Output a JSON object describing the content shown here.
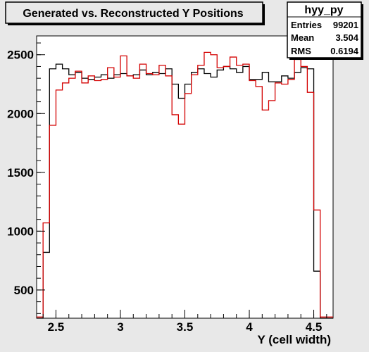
{
  "title": "Generated vs. Reconstructed Y Positions",
  "stats": {
    "name": "hyy_py",
    "rows": [
      {
        "label": "Entries",
        "value": "99201"
      },
      {
        "label": "Mean",
        "value": "3.504"
      },
      {
        "label": "RMS",
        "value": "0.6194"
      }
    ]
  },
  "chart_data": {
    "type": "line",
    "title": "Generated vs. Reconstructed Y Positions",
    "xlabel": "Y (cell width)",
    "ylabel": "",
    "xlim": [
      2.35,
      4.65
    ],
    "ylim": [
      260,
      2660
    ],
    "x_ticks": [
      {
        "value": 2.5,
        "label": "2.5"
      },
      {
        "value": 3.0,
        "label": "3"
      },
      {
        "value": 3.5,
        "label": "3.5"
      },
      {
        "value": 4.0,
        "label": "4"
      },
      {
        "value": 4.5,
        "label": "4.5"
      }
    ],
    "y_ticks": [
      {
        "value": 500,
        "label": "500"
      },
      {
        "value": 1000,
        "label": "1000"
      },
      {
        "value": 1500,
        "label": "1500"
      },
      {
        "value": 2000,
        "label": "2000"
      },
      {
        "value": 2500,
        "label": "2500"
      }
    ],
    "bin_edges": [
      2.35,
      2.4,
      2.45,
      2.5,
      2.55,
      2.6,
      2.65,
      2.7,
      2.75,
      2.8,
      2.85,
      2.9,
      2.95,
      3.0,
      3.05,
      3.1,
      3.15,
      3.2,
      3.25,
      3.3,
      3.35,
      3.4,
      3.45,
      3.5,
      3.55,
      3.6,
      3.65,
      3.7,
      3.75,
      3.8,
      3.85,
      3.9,
      3.95,
      4.0,
      4.05,
      4.1,
      4.15,
      4.2,
      4.25,
      4.3,
      4.35,
      4.4,
      4.45,
      4.5,
      4.55,
      4.6,
      4.65
    ],
    "series": [
      {
        "color": "#000000",
        "values": [
          260,
          820,
          2380,
          2420,
          2380,
          2330,
          2350,
          2300,
          2290,
          2310,
          2330,
          2300,
          2330,
          2340,
          2320,
          2330,
          2370,
          2330,
          2350,
          2340,
          2380,
          2250,
          2130,
          2250,
          2350,
          2380,
          2340,
          2310,
          2370,
          2400,
          2380,
          2350,
          2400,
          2290,
          2290,
          2350,
          2270,
          2270,
          2320,
          2300,
          2350,
          2390,
          2380,
          660,
          260,
          260
        ]
      },
      {
        "color": "#d40000",
        "values": [
          270,
          1070,
          1900,
          2200,
          2260,
          2300,
          2360,
          2260,
          2320,
          2280,
          2290,
          2390,
          2310,
          2490,
          2320,
          2300,
          2420,
          2340,
          2330,
          2410,
          2320,
          1990,
          1910,
          2170,
          2330,
          2410,
          2520,
          2500,
          2390,
          2400,
          2480,
          2410,
          2420,
          2280,
          2230,
          2030,
          2110,
          2260,
          2250,
          2290,
          2460,
          2400,
          2180,
          1180,
          270,
          270
        ]
      }
    ]
  }
}
